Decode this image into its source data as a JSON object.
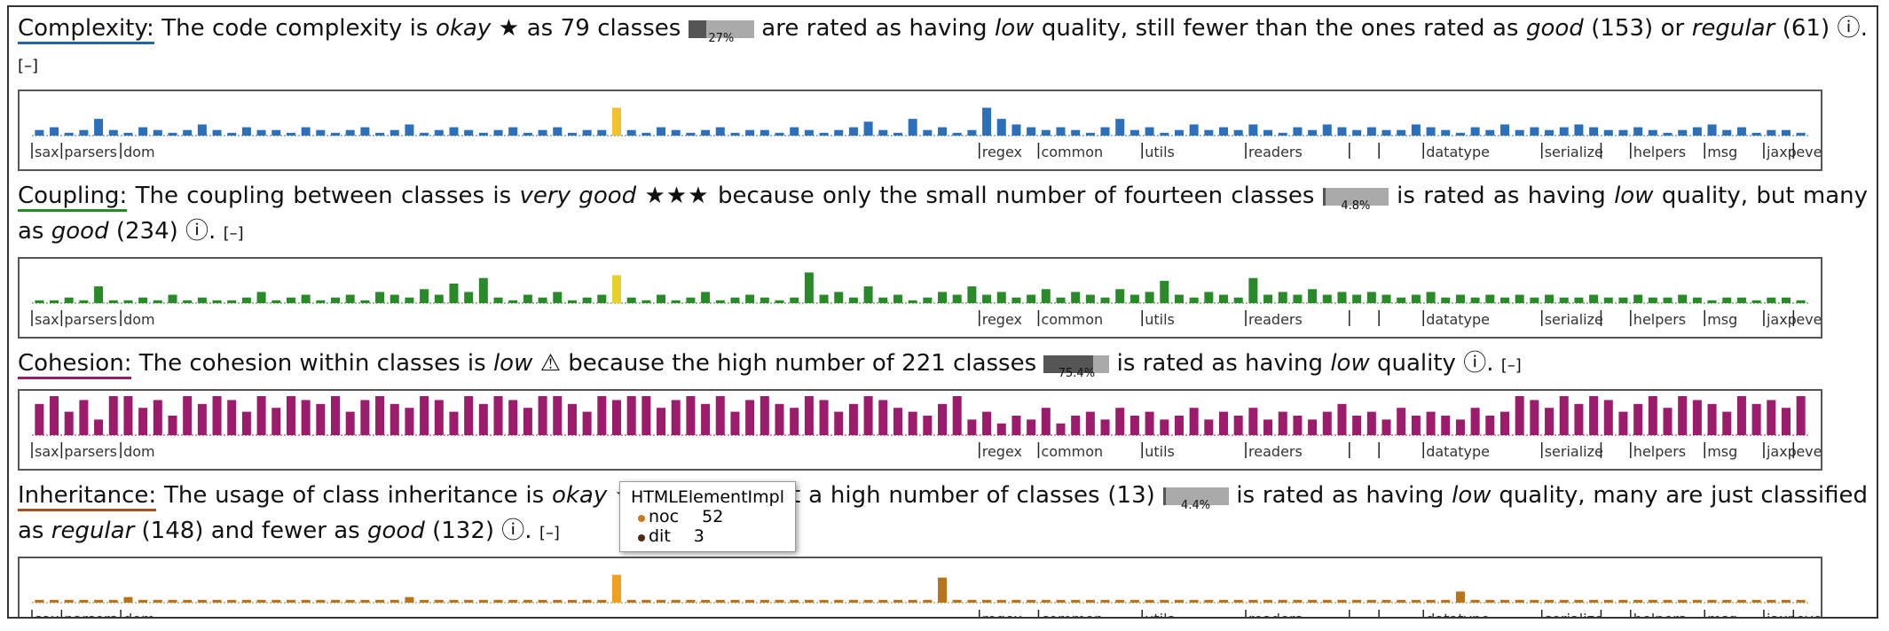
{
  "packages": [
    {
      "label": "sax",
      "at": 0
    },
    {
      "label": "parsers",
      "at": 2
    },
    {
      "label": "dom",
      "at": 6
    },
    {
      "label": "regex",
      "at": 64
    },
    {
      "label": "common",
      "at": 68
    },
    {
      "label": "utils",
      "at": 75
    },
    {
      "label": "readers",
      "at": 82
    },
    {
      "label": null,
      "at": 89
    },
    {
      "label": null,
      "at": 91
    },
    {
      "label": "datatype",
      "at": 94
    },
    {
      "label": "serialize",
      "at": 102
    },
    {
      "label": null,
      "at": 106
    },
    {
      "label": "helpers",
      "at": 108
    },
    {
      "label": "msg",
      "at": 113
    },
    {
      "label": "jaxp",
      "at": 117
    },
    {
      "label": "events",
      "at": 119
    }
  ],
  "sections": [
    {
      "title": "Complexity:",
      "color": "#2166ac",
      "collapse": "[–]",
      "segments": [
        {
          "t": "The code complexity is "
        },
        {
          "em": "okay"
        },
        {
          "t": " ★ as 79 classes "
        },
        {
          "badge": 27,
          "label": "27%"
        },
        {
          "t": " are rated as having "
        },
        {
          "em": "low"
        },
        {
          "t": " quality, still fewer than the ones rated as "
        },
        {
          "em": "good"
        },
        {
          "t": " (153) or "
        },
        {
          "em": "regular"
        },
        {
          "t": " (61) ⓘ. "
        }
      ],
      "bars": {
        "color": "#2c6fbb",
        "highlight": 39,
        "highlight_color": "#f2c12e",
        "ylim": [
          0,
          14
        ],
        "values": [
          2,
          3,
          1,
          2,
          6,
          2,
          1,
          3,
          2,
          1,
          2,
          4,
          2,
          1,
          3,
          2,
          2,
          1,
          3,
          2,
          1,
          2,
          3,
          1,
          2,
          4,
          1,
          2,
          3,
          2,
          1,
          2,
          3,
          1,
          2,
          3,
          1,
          2,
          2,
          10,
          2,
          1,
          3,
          2,
          1,
          2,
          3,
          1,
          2,
          2,
          1,
          3,
          2,
          1,
          2,
          3,
          5,
          2,
          1,
          6,
          2,
          3,
          1,
          2,
          10,
          6,
          4,
          3,
          2,
          3,
          2,
          1,
          3,
          6,
          2,
          3,
          1,
          2,
          4,
          2,
          3,
          2,
          4,
          2,
          1,
          3,
          2,
          4,
          3,
          2,
          3,
          2,
          2,
          4,
          3,
          2,
          1,
          3,
          2,
          4,
          2,
          3,
          2,
          3,
          4,
          3,
          2,
          2,
          3,
          2,
          1,
          2,
          3,
          4,
          2,
          3,
          1,
          2,
          2,
          1
        ]
      }
    },
    {
      "title": "Coupling:",
      "color": "#2a8a2a",
      "collapse": "[–]",
      "segments": [
        {
          "t": "The coupling between classes is "
        },
        {
          "em": "very good"
        },
        {
          "t": " ★★★ because only the small number of fourteen classes "
        },
        {
          "badge": 4.8,
          "label": "4.8%"
        },
        {
          "t": " is rated as having "
        },
        {
          "em": "low"
        },
        {
          "t": " quality, but many as "
        },
        {
          "em": "good"
        },
        {
          "t": " (234) ⓘ. "
        }
      ],
      "bars": {
        "color": "#2a8a2a",
        "highlight": 39,
        "highlight_color": "#e8d02a",
        "ylim": [
          0,
          14
        ],
        "values": [
          1,
          1,
          2,
          1,
          6,
          1,
          1,
          2,
          1,
          3,
          1,
          2,
          1,
          1,
          2,
          4,
          1,
          2,
          3,
          1,
          2,
          3,
          1,
          4,
          3,
          2,
          5,
          3,
          7,
          4,
          9,
          2,
          1,
          3,
          2,
          4,
          1,
          2,
          3,
          10,
          2,
          1,
          3,
          1,
          2,
          4,
          1,
          2,
          3,
          2,
          1,
          2,
          11,
          3,
          4,
          2,
          6,
          2,
          3,
          1,
          2,
          4,
          3,
          6,
          3,
          4,
          2,
          3,
          5,
          2,
          4,
          3,
          2,
          5,
          3,
          4,
          8,
          3,
          2,
          4,
          3,
          2,
          9,
          3,
          4,
          3,
          5,
          3,
          4,
          3,
          4,
          3,
          2,
          3,
          4,
          2,
          3,
          2,
          3,
          2,
          3,
          2,
          3,
          2,
          2,
          3,
          2,
          2,
          3,
          2,
          2,
          3,
          2,
          1,
          2,
          2,
          1,
          2,
          2,
          1
        ]
      }
    },
    {
      "title": "Cohesion:",
      "color": "#9c1b6b",
      "collapse": "[–]",
      "segments": [
        {
          "t": "The cohesion within classes is "
        },
        {
          "em": "low"
        },
        {
          "t": " ⚠ because the high number of 221 classes "
        },
        {
          "badge": 75.4,
          "label": "75.4%"
        },
        {
          "t": " is rated as having "
        },
        {
          "em": "low"
        },
        {
          "t": " quality ⓘ. "
        }
      ],
      "bars": {
        "color": "#9c1b6b",
        "ylim": [
          0,
          10
        ],
        "values": [
          8,
          10,
          6,
          9,
          4,
          10,
          10,
          7,
          9,
          5,
          10,
          8,
          10,
          9,
          6,
          10,
          7,
          10,
          9,
          8,
          10,
          6,
          9,
          10,
          8,
          7,
          10,
          9,
          6,
          10,
          8,
          10,
          9,
          7,
          10,
          10,
          8,
          6,
          10,
          9,
          10,
          10,
          7,
          9,
          10,
          8,
          10,
          6,
          9,
          10,
          8,
          7,
          10,
          9,
          6,
          8,
          10,
          9,
          7,
          6,
          5,
          8,
          10,
          4,
          6,
          3,
          5,
          4,
          7,
          3,
          5,
          6,
          4,
          7,
          5,
          6,
          4,
          5,
          7,
          4,
          6,
          5,
          7,
          4,
          6,
          5,
          4,
          6,
          8,
          5,
          6,
          4,
          7,
          5,
          6,
          5,
          4,
          7,
          5,
          6,
          10,
          9,
          7,
          10,
          8,
          10,
          9,
          6,
          8,
          10,
          7,
          10,
          9,
          8,
          6,
          10,
          8,
          9,
          7,
          10
        ]
      }
    },
    {
      "title": "Inheritance:",
      "color": "#a0521a",
      "collapse": "[–]",
      "segments": [
        {
          "t": "The usage of class inheritance is "
        },
        {
          "em": "okay"
        },
        {
          "t": " ★. Although not a high number of classes (13) "
        },
        {
          "badge": 4.4,
          "label": "4.4%"
        },
        {
          "t": " is rated as having "
        },
        {
          "em": "low"
        },
        {
          "t": " quality, many are just classified as "
        },
        {
          "em": "regular"
        },
        {
          "t": " (148) and fewer as "
        },
        {
          "em": "good"
        },
        {
          "t": " (132) ⓘ. "
        }
      ],
      "bars": {
        "color": "#b8741a",
        "highlight": 39,
        "highlight_color": "#f0a020",
        "ylim": [
          0,
          14
        ],
        "values": [
          1,
          1,
          1,
          1,
          1,
          1,
          2,
          1,
          1,
          1,
          1,
          1,
          1,
          1,
          1,
          1,
          1,
          1,
          1,
          1,
          1,
          1,
          1,
          1,
          1,
          2,
          1,
          1,
          1,
          1,
          1,
          1,
          1,
          1,
          1,
          1,
          1,
          1,
          1,
          10,
          1,
          1,
          1,
          1,
          1,
          1,
          1,
          1,
          1,
          1,
          1,
          1,
          1,
          1,
          1,
          1,
          1,
          1,
          1,
          1,
          1,
          9,
          1,
          1,
          1,
          1,
          1,
          1,
          1,
          1,
          1,
          1,
          1,
          1,
          1,
          1,
          1,
          1,
          1,
          1,
          1,
          1,
          1,
          1,
          1,
          1,
          1,
          1,
          1,
          1,
          1,
          1,
          1,
          1,
          1,
          1,
          4,
          1,
          1,
          1,
          1,
          1,
          1,
          1,
          1,
          1,
          1,
          1,
          1,
          1,
          1,
          1,
          1,
          1,
          1,
          1,
          1,
          1,
          1,
          1
        ]
      }
    }
  ],
  "tooltip": {
    "title": "HTMLElementImpl",
    "rows": [
      {
        "name": "noc",
        "value": 52,
        "color": "#c8781e"
      },
      {
        "name": "dit",
        "value": 3,
        "color": "#4a2a10"
      }
    ]
  }
}
